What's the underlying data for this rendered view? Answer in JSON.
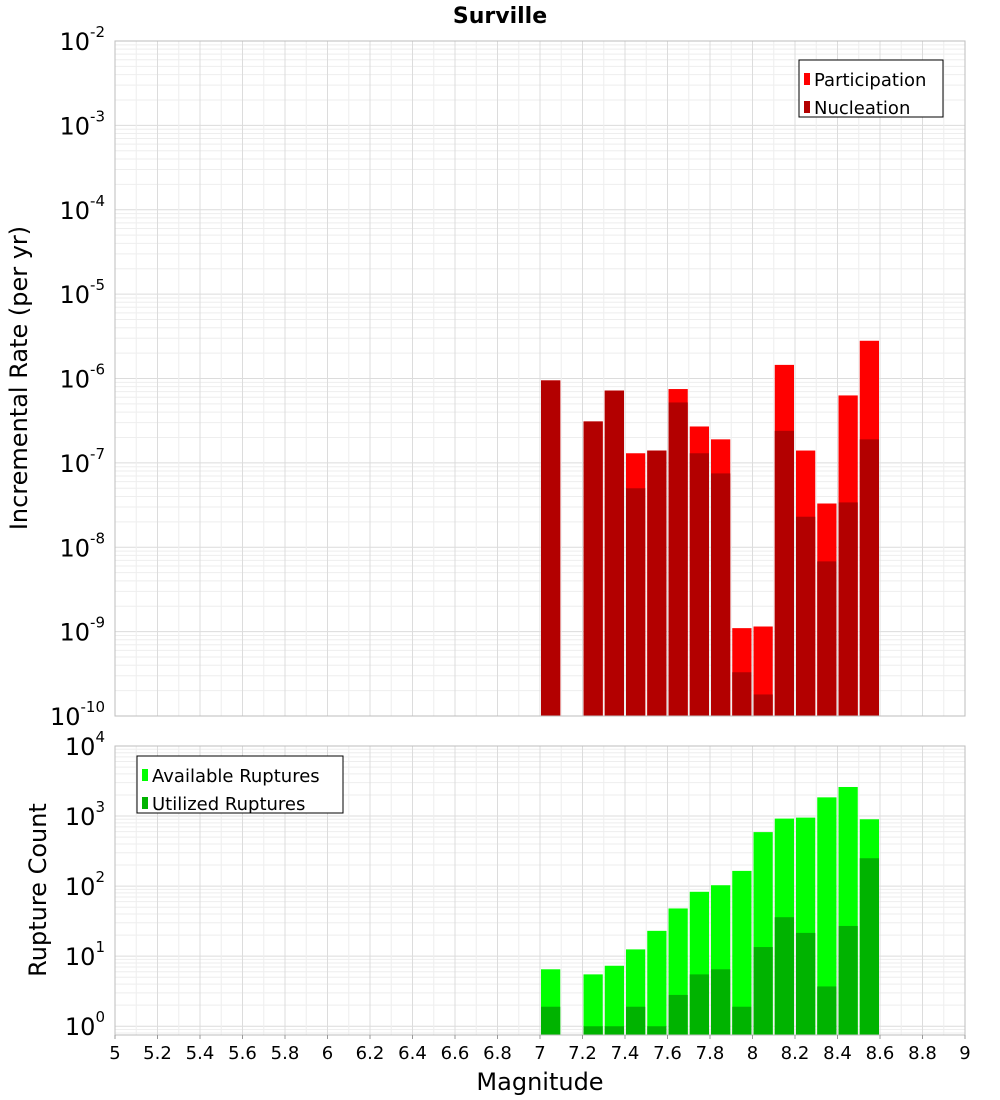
{
  "chart_data": [
    {
      "type": "bar",
      "title": "Surville",
      "xlabel": "",
      "ylabel": "Incremental Rate (per yr)",
      "yscale": "log",
      "ylim": [
        1e-10,
        0.01
      ],
      "yticks": [
        {
          "base": "10",
          "exp": "-2"
        },
        {
          "base": "10",
          "exp": "-3"
        },
        {
          "base": "10",
          "exp": "-4"
        },
        {
          "base": "10",
          "exp": "-5"
        },
        {
          "base": "10",
          "exp": "-6"
        },
        {
          "base": "10",
          "exp": "-7"
        },
        {
          "base": "10",
          "exp": "-8"
        },
        {
          "base": "10",
          "exp": "-9"
        },
        {
          "base": "10",
          "exp": "-10"
        }
      ],
      "x": [
        7.05,
        7.15,
        7.25,
        7.35,
        7.45,
        7.55,
        7.65,
        7.75,
        7.85,
        7.95,
        8.05,
        8.15,
        8.25,
        8.35,
        8.45,
        8.55
      ],
      "legend_position": "top-right",
      "series": [
        {
          "name": "Participation",
          "color": "#ff0000",
          "values": [
            9.5e-07,
            null,
            3.1e-07,
            7.2e-07,
            1.3e-07,
            1.4e-07,
            7.5e-07,
            2.7e-07,
            1.9e-07,
            1.1e-09,
            1.15e-09,
            1.45e-06,
            1.4e-07,
            3.3e-08,
            6.3e-07,
            2.8e-06
          ]
        },
        {
          "name": "Nucleation",
          "color": "#b30000",
          "values": [
            9.5e-07,
            null,
            3.1e-07,
            7.2e-07,
            5e-08,
            1.4e-07,
            5.2e-07,
            1.3e-07,
            7.5e-08,
            3.3e-10,
            1.8e-10,
            2.4e-07,
            2.3e-08,
            6.8e-09,
            3.4e-08,
            1.9e-07
          ]
        }
      ]
    },
    {
      "type": "bar",
      "title": "",
      "xlabel": "Magnitude",
      "ylabel": "Rupture Count",
      "yscale": "log",
      "ylim": [
        0.75,
        10000
      ],
      "yticks": [
        {
          "base": "10",
          "exp": "4"
        },
        {
          "base": "10",
          "exp": "3"
        },
        {
          "base": "10",
          "exp": "2"
        },
        {
          "base": "10",
          "exp": "1"
        },
        {
          "base": "10",
          "exp": "0"
        }
      ],
      "xlim": [
        5,
        9
      ],
      "xticks": [
        "5",
        "5.2",
        "5.4",
        "5.6",
        "5.8",
        "6",
        "6.2",
        "6.4",
        "6.6",
        "6.8",
        "7",
        "7.2",
        "7.4",
        "7.6",
        "7.8",
        "8",
        "8.2",
        "8.4",
        "8.6",
        "8.8",
        "9"
      ],
      "x": [
        7.05,
        7.15,
        7.25,
        7.35,
        7.45,
        7.55,
        7.65,
        7.75,
        7.85,
        7.95,
        8.05,
        8.15,
        8.25,
        8.35,
        8.45,
        8.55
      ],
      "legend_position": "top-left",
      "series": [
        {
          "name": "Available Ruptures",
          "color": "#00ff00",
          "values": [
            6.5,
            null,
            5.5,
            7.3,
            12.5,
            23,
            48,
            83,
            103,
            165,
            590,
            920,
            950,
            1850,
            2600,
            900
          ]
        },
        {
          "name": "Utilized Ruptures",
          "color": "#00b300",
          "values": [
            1.9,
            null,
            1.0,
            1.0,
            1.9,
            1.0,
            2.8,
            5.5,
            6.5,
            1.9,
            13.5,
            36,
            21.5,
            3.7,
            27,
            250
          ]
        }
      ]
    }
  ]
}
